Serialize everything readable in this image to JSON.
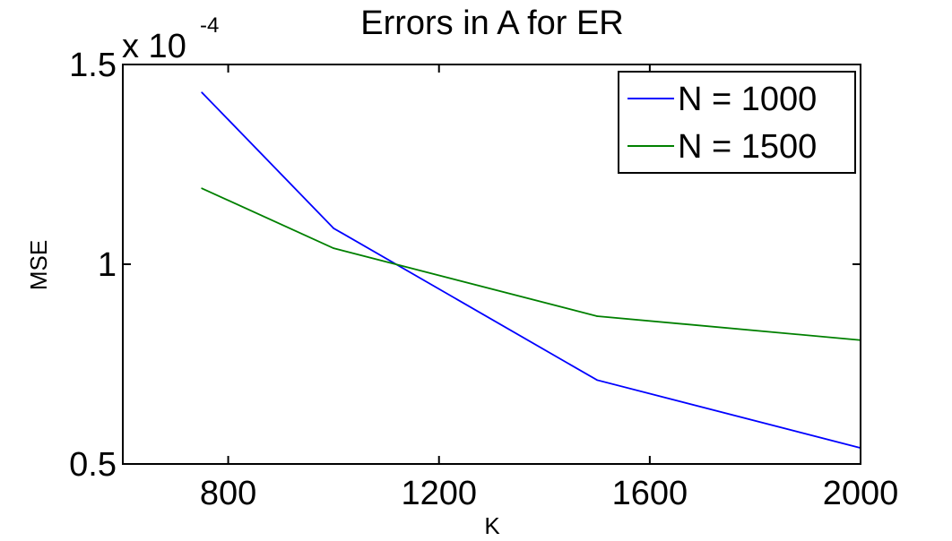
{
  "chart_data": {
    "type": "line",
    "title": "Errors in A for ER",
    "xlabel": "K",
    "ylabel": "MSE",
    "xlim": [
      600,
      2000
    ],
    "ylim": [
      0.5,
      1.5
    ],
    "y_multiplier": "x 10",
    "y_exponent": "-4",
    "xticks": [
      800,
      1200,
      1600,
      2000
    ],
    "xtick_labels": [
      "800",
      "1200",
      "1600",
      "2000"
    ],
    "yticks": [
      0.5,
      1,
      1.5
    ],
    "ytick_labels": [
      "0.5",
      "1",
      "1.5"
    ],
    "grid": false,
    "legend_position": "top-right",
    "series": [
      {
        "name": "N = 1000",
        "color": "#0000ff",
        "x": [
          750,
          1000,
          1500,
          2000
        ],
        "y": [
          1.43,
          1.09,
          0.71,
          0.54
        ]
      },
      {
        "name": "N = 1500",
        "color": "#008000",
        "x": [
          750,
          1000,
          1500,
          2000
        ],
        "y": [
          1.19,
          1.04,
          0.87,
          0.81
        ]
      }
    ]
  }
}
